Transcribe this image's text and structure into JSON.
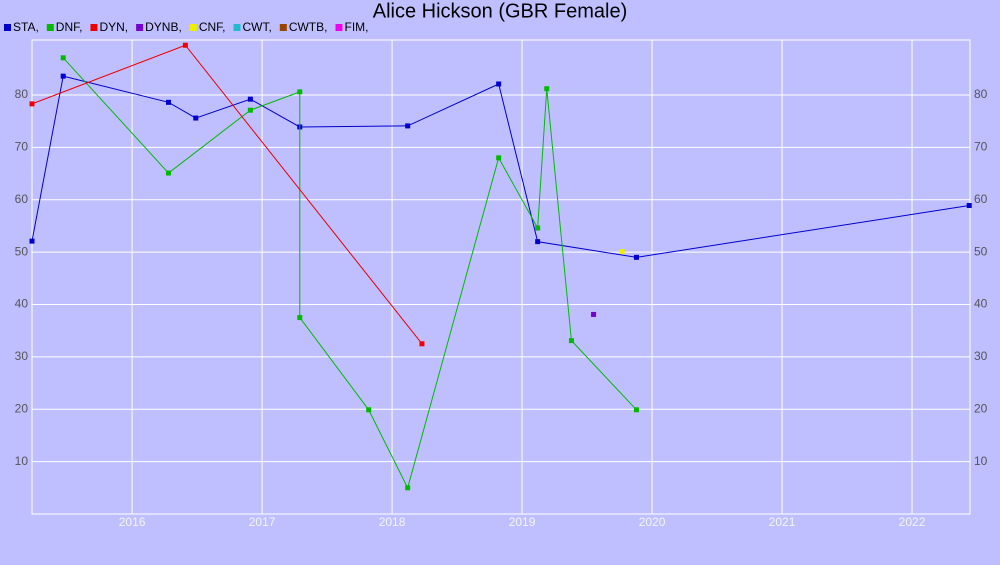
{
  "chart_data": {
    "type": "line",
    "title": "Alice Hickson (GBR Female)",
    "series": [
      {
        "name": "STA,",
        "color": "#0000cc",
        "x": [
          2015.23,
          2015.47,
          2016.28,
          2016.49,
          2016.91,
          2017.29,
          2018.12,
          2018.82,
          2019.12,
          2019.88,
          2022.44
        ],
        "values": [
          52.1,
          83.6,
          78.6,
          75.6,
          79.2,
          73.9,
          74.1,
          82.1,
          52.0,
          49.0,
          58.9
        ]
      },
      {
        "name": "DNF,",
        "color": "#00bb00",
        "x": [
          2015.47,
          2016.28,
          2016.91,
          2017.29,
          2017.29,
          2017.82,
          2018.12,
          2018.82,
          2019.12,
          2019.19,
          2019.38,
          2019.88
        ],
        "values": [
          87.1,
          65.1,
          77.1,
          80.6,
          37.5,
          19.9,
          5.0,
          68.0,
          54.6,
          81.2,
          33.1,
          19.9
        ]
      },
      {
        "name": "DYN,",
        "color": "#ee0000",
        "x": [
          2015.23,
          2016.41,
          2018.23
        ],
        "values": [
          78.3,
          89.5,
          32.5
        ]
      },
      {
        "name": "DYNB,",
        "color": "#7700cc",
        "x": [
          2019.55
        ],
        "values": [
          38.1
        ]
      },
      {
        "name": "CNF,",
        "color": "#eeee00",
        "x": [
          2019.77
        ],
        "values": [
          50.1
        ]
      },
      {
        "name": "CWT,",
        "color": "#22bbcc",
        "x": [],
        "values": []
      },
      {
        "name": "CWTB,",
        "color": "#994400",
        "x": [],
        "values": []
      },
      {
        "name": "FIM,",
        "color": "#ee00ee",
        "x": [],
        "values": []
      }
    ],
    "xlim": [
      2015.23,
      2022.446
    ],
    "xticks": [
      2016,
      2017,
      2018,
      2019,
      2020,
      2021,
      2022
    ],
    "ylim": [
      0,
      90.5
    ],
    "yticks": [
      10,
      20,
      30,
      40,
      50,
      60,
      70,
      80
    ],
    "grid": true
  }
}
